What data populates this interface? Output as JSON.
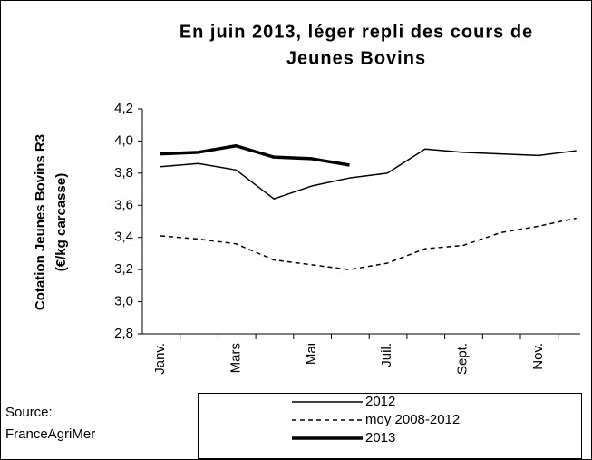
{
  "chart_data": {
    "type": "line",
    "title": [
      "En juin 2013, léger repli des cours de",
      "Jeunes Bovins"
    ],
    "y_label": [
      "Cotation Jeunes Bovins R3",
      "(€/kg carcasse)"
    ],
    "source": [
      "Source:",
      "FranceAgriMer"
    ],
    "categories": [
      "Janv.",
      null,
      "Mars",
      null,
      "Mai",
      null,
      "Juil.",
      null,
      "Sept.",
      null,
      "Nov.",
      null
    ],
    "series": [
      {
        "name": "2012",
        "color": "#000000",
        "linewidth": 1.5,
        "dash": false,
        "values": [
          3.84,
          3.86,
          3.82,
          3.64,
          3.72,
          3.77,
          3.8,
          3.95,
          3.93,
          3.92,
          3.91,
          3.94
        ]
      },
      {
        "name": "moy 2008-2012",
        "color": "#000000",
        "linewidth": 1.5,
        "dash": true,
        "values": [
          3.41,
          3.39,
          3.36,
          3.26,
          3.23,
          3.2,
          3.24,
          3.33,
          3.35,
          3.43,
          3.47,
          3.52
        ]
      },
      {
        "name": "2013",
        "color": "#000000",
        "linewidth": 3.5,
        "dash": false,
        "values": [
          3.92,
          3.93,
          3.97,
          3.9,
          3.89,
          3.85,
          null,
          null,
          null,
          null,
          null,
          null
        ]
      }
    ],
    "ylim": [
      2.8,
      4.2
    ],
    "yticks": [
      {
        "value": 2.8,
        "label": "2,8"
      },
      {
        "value": 3.0,
        "label": "3,0"
      },
      {
        "value": 3.2,
        "label": "3,2"
      },
      {
        "value": 3.4,
        "label": "3,4"
      },
      {
        "value": 3.6,
        "label": "3,6"
      },
      {
        "value": 3.8,
        "label": "3,8"
      },
      {
        "value": 4.0,
        "label": "4,0"
      },
      {
        "value": 4.2,
        "label": "4,2"
      }
    ],
    "grid": false
  }
}
